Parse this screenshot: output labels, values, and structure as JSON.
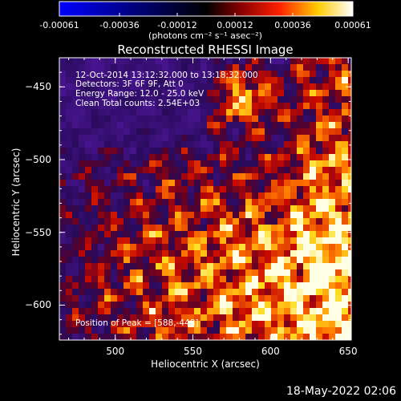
{
  "colorbar": {
    "tick_labels": [
      "-0.00061",
      "-0.00036",
      "-0.00012",
      "0.00012",
      "0.00036",
      "0.00061"
    ],
    "tick_values": [
      -0.00061,
      -0.00036,
      -0.00012,
      0.00012,
      0.00036,
      0.00061
    ],
    "range": [
      -0.00061,
      0.00061
    ],
    "unit_label": "(photons cm⁻² s⁻¹ asec⁻²)",
    "colors": [
      "#0000ff",
      "#000000",
      "#ff0000",
      "#ffff00",
      "#ffffff"
    ]
  },
  "chart_data": {
    "type": "heatmap",
    "title": "Reconstructed RHESSI Image",
    "xlabel": "Heliocentric X (arcsec)",
    "ylabel": "Heliocentric Y (arcsec)",
    "xlim": [
      464,
      652
    ],
    "ylim": [
      -624,
      -430
    ],
    "x_ticks": [
      500,
      550,
      600,
      650
    ],
    "y_ticks": [
      -450,
      -500,
      -550,
      -600
    ],
    "peak": [
      588,
      -448
    ]
  },
  "annotations": {
    "time_range": "12-Oct-2014 13:12:32.000 to 13:18:32.000",
    "detectors": "Detectors: 3F 6F 9F, Att 0",
    "energy_range": "Energy Range: 12.0 - 25.0 keV",
    "method_counts": "Clean     Total counts: 2.54E+03",
    "peak_position": "Position of Peak = [588,-448]"
  },
  "footer": {
    "date": "18-May-2022 02:06"
  }
}
